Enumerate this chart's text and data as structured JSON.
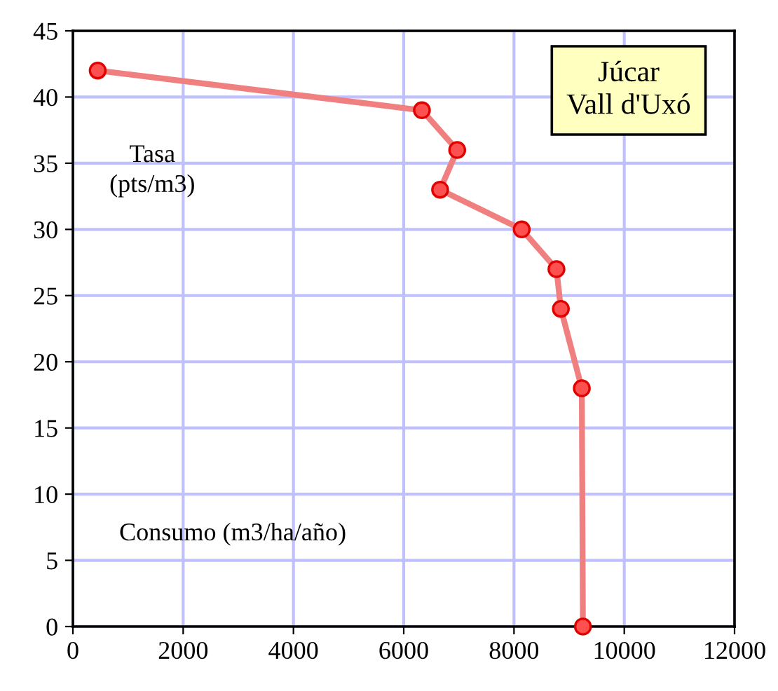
{
  "chart_data": {
    "type": "line",
    "title": "Júcar\nVall d'Uxó",
    "xlabel": "Consumo (m3/ha/año)",
    "ylabel": "Tasa\n(pts/m3)",
    "series": [
      {
        "color": "#f08080",
        "x": [
          450,
          6330,
          6970,
          6660,
          8140,
          8770,
          8850,
          9230,
          9250
        ],
        "values": [
          42,
          39,
          36,
          33,
          30,
          27,
          24,
          18,
          0
        ]
      }
    ],
    "marker": "circle",
    "line_style": "solid",
    "xlim": [
      0,
      12000
    ],
    "xticks": [
      0,
      2000,
      4000,
      6000,
      8000,
      10000,
      12000
    ],
    "ylim": [
      0,
      45
    ],
    "yticks": [
      0,
      5,
      10,
      15,
      20,
      25,
      30,
      35,
      40,
      45
    ],
    "grid": true
  }
}
